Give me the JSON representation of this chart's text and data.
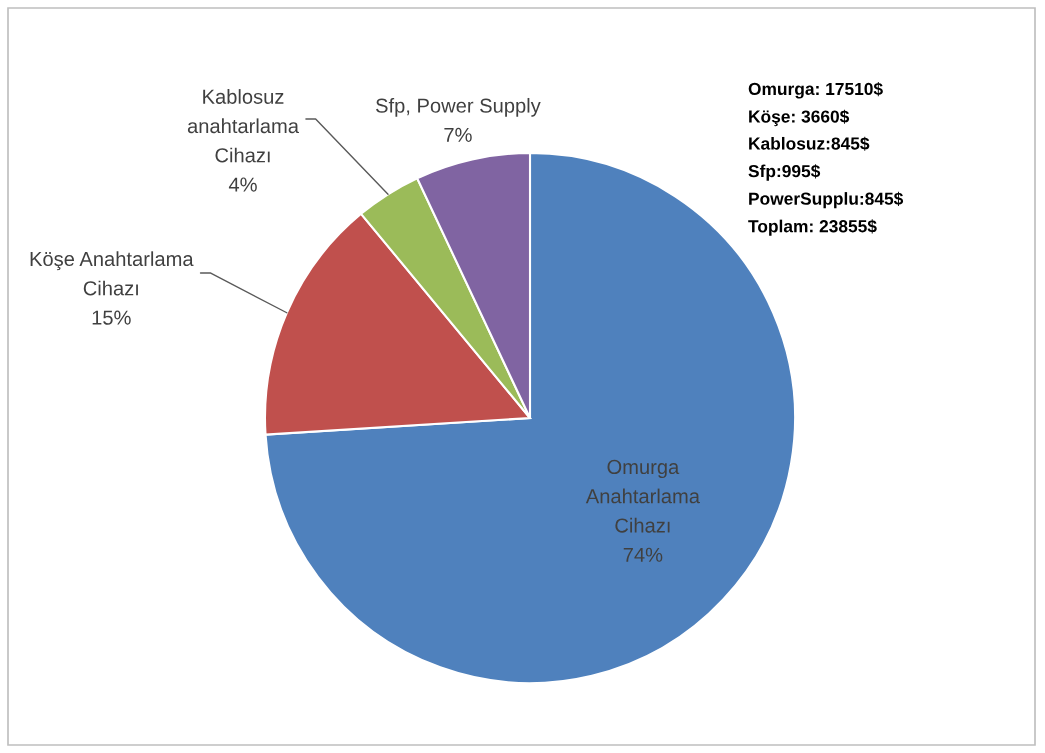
{
  "chart_data": {
    "type": "pie",
    "categories": [
      "Omurga Anahtarlama Cihazı",
      "Köşe Anahtarlama Cihazı",
      "Kablosuz anahtarlama Cihazı",
      "Sfp, Power Supply"
    ],
    "values": [
      74,
      15,
      4,
      7
    ],
    "colors": [
      "#4f81bd",
      "#c0504d",
      "#9bbb59",
      "#8064a2"
    ],
    "value_labels": [
      "74%",
      "15%",
      "4%",
      "7%"
    ],
    "annotations": [
      "Omurga: 17510$\nKöşe: 3660$\nKablosuz:845$\nSfp:995$\nPowerSupplu:845$\nToplam: 23855$"
    ]
  }
}
